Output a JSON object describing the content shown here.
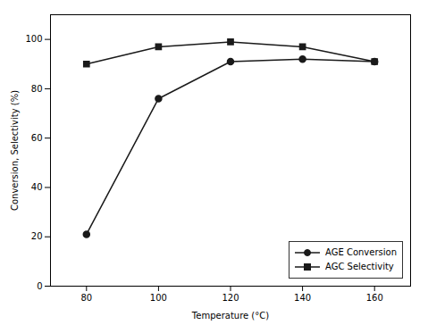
{
  "chart_data": {
    "type": "line",
    "xlabel": "Temperature (°C)",
    "ylabel": "Conversion, Selectivity (%)",
    "x": [
      80,
      100,
      120,
      140,
      160
    ],
    "series": [
      {
        "name": "AGE Conversion",
        "color": "#1a1a1a",
        "marker": "circle",
        "values": [
          21,
          76,
          91,
          92,
          91
        ]
      },
      {
        "name": "AGC Selectivity",
        "color": "#1a1a1a",
        "marker": "square",
        "values": [
          90,
          97,
          99,
          97,
          91
        ]
      }
    ],
    "xlim": [
      70,
      170
    ],
    "ylim": [
      0,
      110
    ],
    "xticks": [
      80,
      100,
      120,
      140,
      160
    ],
    "yticks": [
      0,
      20,
      40,
      60,
      80,
      100
    ],
    "grid": false,
    "legend": "lower right"
  }
}
